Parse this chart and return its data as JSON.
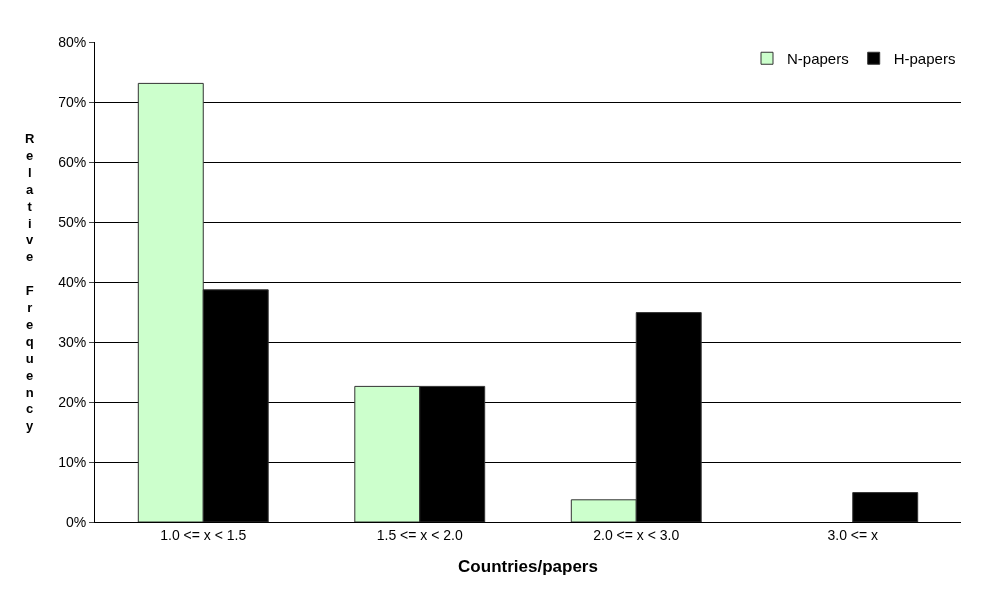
{
  "chart_data": {
    "type": "bar",
    "xlabel": "Countries/papers",
    "ylabel": "Relative Frequency",
    "categories": [
      "1.0 <= x < 1.5",
      "1.5 <= x < 2.0",
      "2.0 <= x < 3.0",
      "3.0 <= x"
    ],
    "series": [
      {
        "name": "N-papers",
        "color": "#ccffcc",
        "values": [
          73.1,
          22.6,
          3.7,
          null
        ]
      },
      {
        "name": "H-papers",
        "color": "#000000",
        "values": [
          38.7,
          22.6,
          34.9,
          4.9
        ]
      }
    ],
    "ylim": [
      0,
      80
    ],
    "yticks": [
      {
        "value": 0,
        "label": "0%"
      },
      {
        "value": 10,
        "label": "10%"
      },
      {
        "value": 20,
        "label": "20%"
      },
      {
        "value": 30,
        "label": "30%"
      },
      {
        "value": 40,
        "label": "40%"
      },
      {
        "value": 50,
        "label": "50%"
      },
      {
        "value": 60,
        "label": "60%"
      },
      {
        "value": 70,
        "label": "70%"
      },
      {
        "value": 80,
        "label": "80%"
      }
    ],
    "grid": "y",
    "legend": "top right"
  }
}
